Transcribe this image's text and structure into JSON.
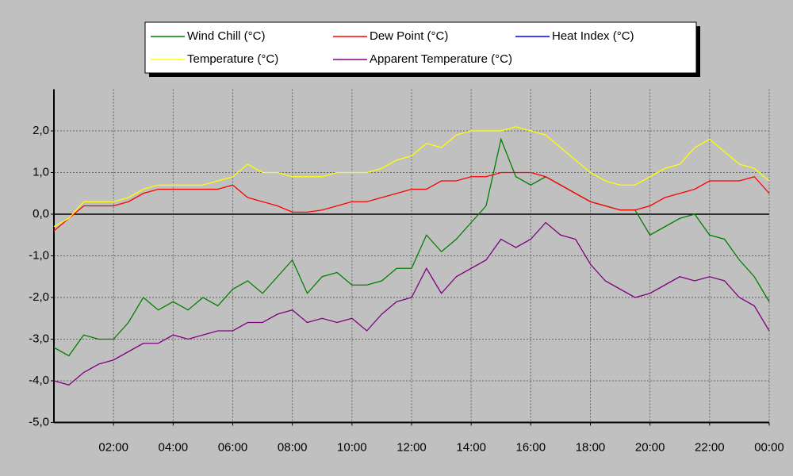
{
  "chart_data": {
    "type": "line",
    "x": [
      0,
      0.5,
      1,
      1.5,
      2,
      2.5,
      3,
      3.5,
      4,
      4.5,
      5,
      5.5,
      6,
      6.5,
      7,
      7.5,
      8,
      8.5,
      9,
      9.5,
      10,
      10.5,
      11,
      11.5,
      12,
      12.5,
      13,
      13.5,
      14,
      14.5,
      15,
      15.5,
      16,
      16.5,
      17,
      17.5,
      18,
      18.5,
      19,
      19.5,
      20,
      20.5,
      21,
      21.5,
      22,
      22.5,
      23,
      23.5,
      24
    ],
    "series": [
      {
        "name": "Wind Chill (°C)",
        "color": "#008000",
        "values": [
          -3.2,
          -3.4,
          -2.9,
          -3.0,
          -3.0,
          -2.6,
          -2.0,
          -2.3,
          -2.1,
          -2.3,
          -2.0,
          -2.2,
          -1.8,
          -1.6,
          -1.9,
          -1.5,
          -1.1,
          -1.9,
          -1.5,
          -1.4,
          -1.7,
          -1.7,
          -1.6,
          -1.3,
          -1.3,
          -0.5,
          -0.9,
          -0.6,
          -0.2,
          0.2,
          1.8,
          0.9,
          0.7,
          0.9,
          0.7,
          0.5,
          0.3,
          0.2,
          0.1,
          0.1,
          -0.5,
          -0.3,
          -0.1,
          0.0,
          -0.5,
          -0.6,
          -1.1,
          -1.5,
          -2.1
        ]
      },
      {
        "name": "Dew Point (°C)",
        "color": "#ff0000",
        "values": [
          -0.4,
          -0.1,
          0.2,
          0.2,
          0.2,
          0.3,
          0.5,
          0.6,
          0.6,
          0.6,
          0.6,
          0.6,
          0.7,
          0.4,
          0.3,
          0.2,
          0.05,
          0.05,
          0.1,
          0.2,
          0.3,
          0.3,
          0.4,
          0.5,
          0.6,
          0.6,
          0.8,
          0.8,
          0.9,
          0.9,
          1.0,
          1.0,
          1.0,
          0.9,
          0.7,
          0.5,
          0.3,
          0.2,
          0.1,
          0.1,
          0.2,
          0.4,
          0.5,
          0.6,
          0.8,
          0.8,
          0.8,
          0.9,
          0.5
        ]
      },
      {
        "name": "Heat Index (°C)",
        "color": "#0000ff",
        "values": [
          null,
          null,
          null,
          null,
          null,
          null,
          null,
          null,
          null,
          null,
          null,
          null,
          null,
          null,
          null,
          null,
          null,
          null,
          null,
          null,
          null,
          null,
          null,
          null,
          null,
          null,
          null,
          null,
          null,
          null,
          null,
          null,
          null,
          null,
          null,
          null,
          null,
          null,
          null,
          null,
          null,
          null,
          null,
          null,
          null,
          null,
          null,
          null,
          null
        ]
      },
      {
        "name": "Temperature (°C)",
        "color": "#ffff00",
        "values": [
          -0.3,
          -0.1,
          0.3,
          0.3,
          0.3,
          0.4,
          0.6,
          0.7,
          0.7,
          0.7,
          0.7,
          0.8,
          0.9,
          1.2,
          1.0,
          1.0,
          0.9,
          0.9,
          0.9,
          1.0,
          1.0,
          1.0,
          1.1,
          1.3,
          1.4,
          1.7,
          1.6,
          1.9,
          2.0,
          2.0,
          2.0,
          2.1,
          2.0,
          1.9,
          1.6,
          1.3,
          1.0,
          0.8,
          0.7,
          0.7,
          0.9,
          1.1,
          1.2,
          1.6,
          1.8,
          1.5,
          1.2,
          1.1,
          0.8
        ]
      },
      {
        "name": "Apparent Temperature (°C)",
        "color": "#800080",
        "values": [
          -4.0,
          -4.1,
          -3.8,
          -3.6,
          -3.5,
          -3.3,
          -3.1,
          -3.1,
          -2.9,
          -3.0,
          -2.9,
          -2.8,
          -2.8,
          -2.6,
          -2.6,
          -2.4,
          -2.3,
          -2.6,
          -2.5,
          -2.6,
          -2.5,
          -2.8,
          -2.4,
          -2.1,
          -2.0,
          -1.3,
          -1.9,
          -1.5,
          -1.3,
          -1.1,
          -0.6,
          -0.8,
          -0.6,
          -0.2,
          -0.5,
          -0.6,
          -1.2,
          -1.6,
          -1.8,
          -2.0,
          -1.9,
          -1.7,
          -1.5,
          -1.6,
          -1.5,
          -1.6,
          -2.0,
          -2.2,
          -2.8
        ]
      }
    ],
    "xlim": [
      0,
      24
    ],
    "xticks": [
      {
        "value": 2,
        "label": "02:00"
      },
      {
        "value": 4,
        "label": "04:00"
      },
      {
        "value": 6,
        "label": "06:00"
      },
      {
        "value": 8,
        "label": "08:00"
      },
      {
        "value": 10,
        "label": "10:00"
      },
      {
        "value": 12,
        "label": "12:00"
      },
      {
        "value": 14,
        "label": "14:00"
      },
      {
        "value": 16,
        "label": "16:00"
      },
      {
        "value": 18,
        "label": "18:00"
      },
      {
        "value": 20,
        "label": "20:00"
      },
      {
        "value": 22,
        "label": "22:00"
      },
      {
        "value": 24,
        "label": "00:00"
      }
    ],
    "ylim": [
      -5,
      3
    ],
    "yticks": [
      {
        "value": -5,
        "label": "-5,0"
      },
      {
        "value": -4,
        "label": "-4,0"
      },
      {
        "value": -3,
        "label": "-3,0"
      },
      {
        "value": -2,
        "label": "-2,0"
      },
      {
        "value": -1,
        "label": "-1,0"
      },
      {
        "value": 0,
        "label": "0,0"
      },
      {
        "value": 1,
        "label": "1,0"
      },
      {
        "value": 2,
        "label": "2,0"
      }
    ],
    "grid": true
  }
}
